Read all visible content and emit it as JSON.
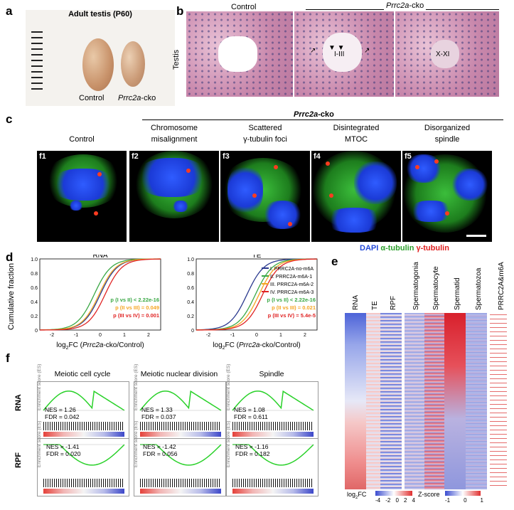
{
  "panels": {
    "a": "a",
    "b": "b",
    "c": "c",
    "d": "d",
    "e": "e",
    "f": "f"
  },
  "a": {
    "title": "Adult testis (P60)",
    "control": "Control",
    "cko_gene": "Prrc2a",
    "cko_suffix": "-cko"
  },
  "b": {
    "control": "Control",
    "cko_gene": "Prrc2a",
    "cko_suffix": "-cko",
    "side": "Testis",
    "stage1": "I-III",
    "stage2": "X-XI"
  },
  "c": {
    "header_gene": "Prrc2a",
    "header_suffix": "-cko",
    "columns": [
      "Control",
      "Chromosome misalignment",
      "Scattered γ-tubulin foci",
      "Disintegrated MTOC",
      "Disorganized spindle"
    ],
    "col_lines": [
      [
        "Control",
        ""
      ],
      [
        "Chromosome",
        "misalignment"
      ],
      [
        "Scattered",
        "γ-tubulin foci"
      ],
      [
        "Disintegrated",
        "MTOC"
      ],
      [
        "Disorganized",
        "spindle"
      ]
    ],
    "tiles": [
      "f1",
      "f2",
      "f3",
      "f4",
      "f5"
    ],
    "legend": {
      "dapi": "DAPI",
      "alpha": "α-tubulin",
      "gamma": "γ-tubulin"
    }
  },
  "d": {
    "ylabel": "Cumulative fraction",
    "xlabel_pre": "log",
    "xlabel_sub": "2",
    "xlabel_post": "FC (",
    "xlabel_gene": "Prrc2a",
    "xlabel_tail": "-cko/Control)",
    "left_title": "RNA",
    "right_title": "TE",
    "yticks": [
      "1.0",
      "0.8",
      "0.6",
      "0.4",
      "0.2",
      "0"
    ],
    "xticks": [
      "-2",
      "-1",
      "0",
      "1",
      "2"
    ],
    "legend": [
      "I. PRRC2A-no-m6A",
      "II. PRRC2A-m6A-1",
      "III. PRRC2A-m6A-2",
      "IV. PRRC2A-m6A-3"
    ],
    "left_stats": [
      "p (I vs II) < 2.22e-16",
      "p (II vs III) = 0.049",
      "p (III vs IV) = 0.001"
    ],
    "right_stats": [
      "p (I vs II) < 2.22e-16",
      "p (II vs III) = 0.021",
      "p (III vs IV) = 5.4e-5"
    ],
    "colors": {
      "I": "#2b3a8f",
      "II": "#3aa845",
      "III": "#f5a623",
      "IV": "#e02424"
    }
  },
  "e": {
    "columns": [
      "RNA",
      "TE",
      "RPF",
      "Spermatogonia",
      "Spermatocyte",
      "Spermatid",
      "Spermatozoa",
      "PRRC2A&m6A"
    ],
    "fc_label_pre": "log",
    "fc_label_sub": "2",
    "fc_label_post": "FC",
    "fc_ticks": [
      "-4",
      "-2",
      "0",
      "2",
      "4"
    ],
    "z_label": "Z-score",
    "z_ticks": [
      "-1",
      "0",
      "1"
    ]
  },
  "f": {
    "titles": [
      "Meiotic cell cycle",
      "Meiotic nuclear division",
      "Spindle"
    ],
    "rows": [
      "RNA",
      "RPF"
    ],
    "stats": [
      [
        "NES = 1.26",
        "FDR = 0.042"
      ],
      [
        "NES = 1.33",
        "FDR = 0.037"
      ],
      [
        "NES = 1.08",
        "FDR = 0.611"
      ],
      [
        "NES = -1.41",
        "FDR = 0.020"
      ],
      [
        "NES = -1.42",
        "FDR = 0.056"
      ],
      [
        "NES = -1.16",
        "FDR = 0.182"
      ]
    ],
    "ylab": "Enrichment score (ES)"
  }
}
